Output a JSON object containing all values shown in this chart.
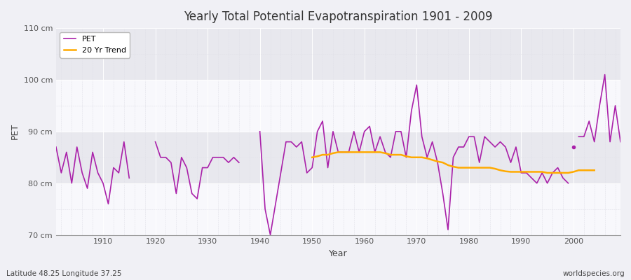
{
  "title": "Yearly Total Potential Evapotranspiration 1901 - 2009",
  "xlabel": "Year",
  "ylabel": "PET",
  "bottom_left_label": "Latitude 48.25 Longitude 37.25",
  "bottom_right_label": "worldspecies.org",
  "ylim": [
    70,
    110
  ],
  "xlim": [
    1901,
    2009
  ],
  "ytick_labels": [
    "70 cm",
    "80 cm",
    "90 cm",
    "100 cm",
    "110 cm"
  ],
  "ytick_values": [
    70,
    80,
    90,
    100,
    110
  ],
  "fig_bg_color": "#f0f0f5",
  "plot_bg_color": "#f0f0f5",
  "band1_color": "#e8e8ee",
  "band2_color": "#f8f8fc",
  "pet_color": "#aa22aa",
  "trend_color": "#ffaa00",
  "pet_label": "PET",
  "trend_label": "20 Yr Trend",
  "pet_data": {
    "1901": 87,
    "1902": 82,
    "1903": 86,
    "1904": 80,
    "1905": 87,
    "1906": 82,
    "1907": 79,
    "1908": 86,
    "1909": 82,
    "1910": 80,
    "1911": 76,
    "1912": 83,
    "1913": 82,
    "1914": 88,
    "1915": 81,
    "1920": 88,
    "1921": 85,
    "1922": 85,
    "1923": 84,
    "1924": 78,
    "1925": 85,
    "1926": 83,
    "1927": 78,
    "1928": 77,
    "1929": 83,
    "1930": 83,
    "1931": 85,
    "1932": 85,
    "1933": 85,
    "1934": 84,
    "1935": 85,
    "1936": 84,
    "1940": 90,
    "1941": 75,
    "1942": 70,
    "1943": 76,
    "1944": 82,
    "1945": 88,
    "1946": 88,
    "1947": 87,
    "1948": 88,
    "1949": 82,
    "1950": 83,
    "1951": 90,
    "1952": 92,
    "1953": 83,
    "1954": 90,
    "1955": 86,
    "1956": 86,
    "1957": 86,
    "1958": 90,
    "1959": 86,
    "1960": 90,
    "1961": 91,
    "1962": 86,
    "1963": 89,
    "1964": 86,
    "1965": 85,
    "1966": 90,
    "1967": 90,
    "1968": 85,
    "1969": 94,
    "1970": 99,
    "1971": 89,
    "1972": 85,
    "1973": 88,
    "1974": 84,
    "1975": 78,
    "1976": 71,
    "1977": 85,
    "1978": 87,
    "1979": 87,
    "1980": 89,
    "1981": 89,
    "1982": 84,
    "1983": 89,
    "1984": 88,
    "1985": 87,
    "1986": 88,
    "1987": 87,
    "1988": 84,
    "1989": 87,
    "1990": 82,
    "1991": 82,
    "1992": 81,
    "1993": 80,
    "1994": 82,
    "1995": 80,
    "1996": 82,
    "1997": 83,
    "1998": 81,
    "1999": 80,
    "2001": 89,
    "2002": 89,
    "2003": 92,
    "2004": 88,
    "2005": 95,
    "2006": 101,
    "2007": 88,
    "2008": 95,
    "2009": 88
  },
  "trend_data": {
    "1950": 85.0,
    "1951": 85.2,
    "1952": 85.5,
    "1953": 85.5,
    "1954": 85.8,
    "1955": 86.0,
    "1956": 86.0,
    "1957": 86.0,
    "1958": 86.0,
    "1959": 86.0,
    "1960": 86.0,
    "1961": 86.0,
    "1962": 86.0,
    "1963": 86.0,
    "1964": 85.8,
    "1965": 85.5,
    "1966": 85.5,
    "1967": 85.5,
    "1968": 85.2,
    "1969": 85.0,
    "1970": 85.0,
    "1971": 85.0,
    "1972": 84.8,
    "1973": 84.5,
    "1974": 84.2,
    "1975": 84.0,
    "1976": 83.5,
    "1977": 83.2,
    "1978": 83.0,
    "1979": 83.0,
    "1980": 83.0,
    "1981": 83.0,
    "1982": 83.0,
    "1983": 83.0,
    "1984": 83.0,
    "1985": 82.8,
    "1986": 82.5,
    "1987": 82.3,
    "1988": 82.2,
    "1989": 82.2,
    "1990": 82.2,
    "1991": 82.2,
    "1992": 82.2,
    "1993": 82.2,
    "1994": 82.2,
    "1995": 82.0,
    "1996": 82.0,
    "1997": 82.0,
    "1998": 82.0,
    "1999": 82.0,
    "2000": 82.2,
    "2001": 82.5,
    "2002": 82.5,
    "2003": 82.5,
    "2004": 82.5
  },
  "dot_year": 2000,
  "dot_value": 87,
  "xticks": [
    1910,
    1920,
    1930,
    1940,
    1950,
    1960,
    1970,
    1980,
    1990,
    2000
  ],
  "grid_color": "#ffffff",
  "minor_grid_color": "#e0e0e8"
}
